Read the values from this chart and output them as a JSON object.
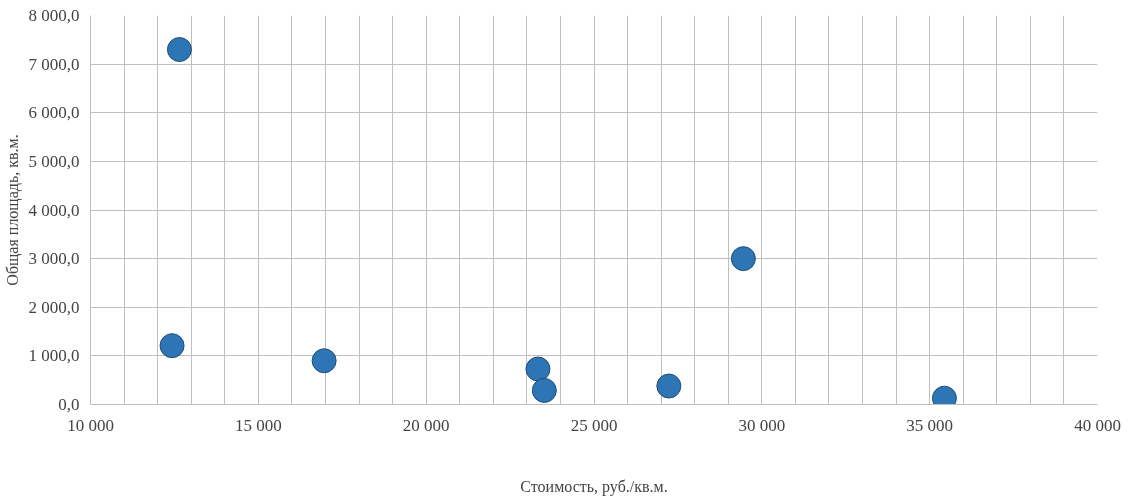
{
  "chart_data": {
    "type": "scatter",
    "xlabel": "Стоимость, руб./кв.м.",
    "ylabel": "Общая площадь, кв.м.",
    "x": [
      12650,
      12430,
      16960,
      23330,
      23520,
      27230,
      29450,
      35440
    ],
    "values": [
      7300,
      1210,
      900,
      730,
      290,
      380,
      3000,
      130
    ],
    "color": "#2e75b6",
    "marker": "circle",
    "grid": true,
    "xlim": [
      10000,
      40000
    ],
    "xticks": [
      {
        "value": 10000,
        "label": "10 000"
      },
      {
        "value": 11000,
        "label": null
      },
      {
        "value": 12000,
        "label": null
      },
      {
        "value": 13000,
        "label": null
      },
      {
        "value": 14000,
        "label": null
      },
      {
        "value": 15000,
        "label": "15 000"
      },
      {
        "value": 16000,
        "label": null
      },
      {
        "value": 17000,
        "label": null
      },
      {
        "value": 18000,
        "label": null
      },
      {
        "value": 19000,
        "label": null
      },
      {
        "value": 20000,
        "label": "20 000"
      },
      {
        "value": 21000,
        "label": null
      },
      {
        "value": 22000,
        "label": null
      },
      {
        "value": 23000,
        "label": null
      },
      {
        "value": 24000,
        "label": null
      },
      {
        "value": 25000,
        "label": "25 000"
      },
      {
        "value": 26000,
        "label": null
      },
      {
        "value": 27000,
        "label": null
      },
      {
        "value": 28000,
        "label": null
      },
      {
        "value": 29000,
        "label": null
      },
      {
        "value": 30000,
        "label": "30 000"
      },
      {
        "value": 31000,
        "label": null
      },
      {
        "value": 32000,
        "label": null
      },
      {
        "value": 33000,
        "label": null
      },
      {
        "value": 34000,
        "label": null
      },
      {
        "value": 35000,
        "label": "35 000"
      },
      {
        "value": 36000,
        "label": null
      },
      {
        "value": 37000,
        "label": null
      },
      {
        "value": 38000,
        "label": null
      },
      {
        "value": 39000,
        "label": null
      },
      {
        "value": 40000,
        "label": "40 000"
      }
    ],
    "ylim": [
      0,
      8000
    ],
    "yticks": [
      {
        "value": 0,
        "label": "0,0"
      },
      {
        "value": 1000,
        "label": "1 000,0"
      },
      {
        "value": 2000,
        "label": "2 000,0"
      },
      {
        "value": 3000,
        "label": "3 000,0"
      },
      {
        "value": 4000,
        "label": "4 000,0"
      },
      {
        "value": 5000,
        "label": "5 000,0"
      },
      {
        "value": 6000,
        "label": "6 000,0"
      },
      {
        "value": 7000,
        "label": "7 000,0"
      },
      {
        "value": 8000,
        "label": "8 000,0"
      }
    ]
  }
}
